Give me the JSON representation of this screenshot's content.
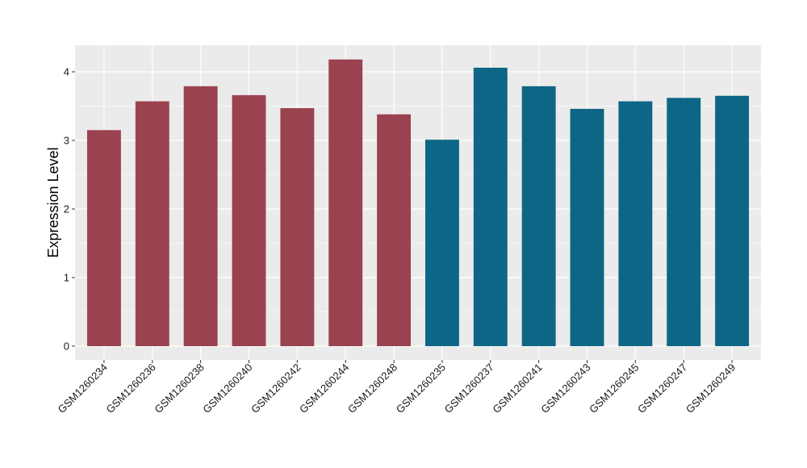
{
  "chart_data": {
    "type": "bar",
    "title": "",
    "xlabel": "",
    "ylabel": "Expression Level",
    "ylim": [
      -0.2,
      4.35
    ],
    "yticks": [
      0,
      1,
      2,
      3,
      4
    ],
    "ytick_labels": [
      "0",
      "1",
      "2",
      "3",
      "4"
    ],
    "grid": true,
    "legend": "none",
    "categories": [
      "GSM1260234",
      "GSM1260236",
      "GSM1260238",
      "GSM1260240",
      "GSM1260242",
      "GSM1260244",
      "GSM1260248",
      "GSM1260235",
      "GSM1260237",
      "GSM1260241",
      "GSM1260243",
      "GSM1260245",
      "GSM1260247",
      "GSM1260249"
    ],
    "values": [
      3.15,
      3.57,
      3.79,
      3.66,
      3.47,
      4.18,
      3.38,
      3.01,
      4.06,
      3.79,
      3.46,
      3.57,
      3.62,
      3.65
    ],
    "group_sizes": [
      7,
      7
    ],
    "colors": {
      "group_1": "#9b4250",
      "group_2": "#0d6685",
      "panel_background": "#ebebeb",
      "grid": "#ffffff"
    }
  }
}
